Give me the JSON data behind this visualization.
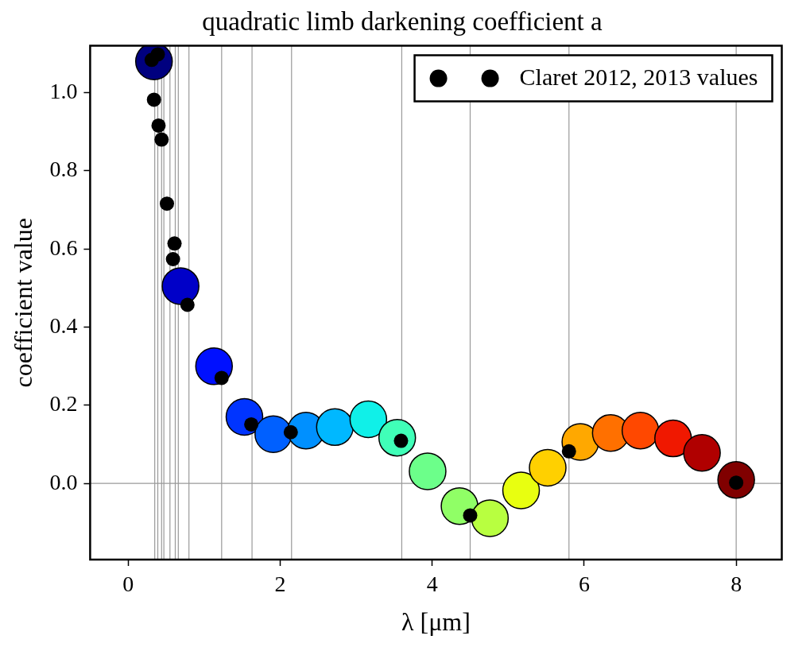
{
  "chart_data": {
    "type": "scatter",
    "title": "quadratic limb darkening coefficient a",
    "xlabel": "λ [μm]",
    "ylabel": "coefficient value",
    "xlim": [
      -0.5,
      8.6
    ],
    "ylim": [
      -0.195,
      1.12
    ],
    "xticks": [
      0,
      2,
      4,
      6,
      8
    ],
    "yticks": [
      {
        "value": 0,
        "label": "0.0"
      },
      {
        "value": 0.2,
        "label": "0.2"
      },
      {
        "value": 0.4,
        "label": "0.4"
      },
      {
        "value": 0.6,
        "label": "0.6"
      },
      {
        "value": 0.8,
        "label": "0.8"
      },
      {
        "value": 1.0,
        "label": "1.0"
      }
    ],
    "grid": false,
    "legend": "top right",
    "marker": "circle",
    "series": [
      {
        "x": [
          0.34,
          0.69,
          1.13,
          1.53,
          1.91,
          2.34,
          2.72,
          3.16,
          3.54,
          3.94,
          4.36,
          4.76,
          5.17,
          5.52,
          5.95,
          6.35,
          6.74,
          7.17,
          7.55,
          8.0
        ],
        "values": [
          1.08,
          0.505,
          0.3,
          0.17,
          0.126,
          0.135,
          0.144,
          0.164,
          0.117,
          0.031,
          -0.058,
          -0.089,
          -0.018,
          0.04,
          0.106,
          0.129,
          0.135,
          0.115,
          0.078,
          0.009
        ],
        "colors": [
          "#00007f",
          "#0000c8",
          "#0010ff",
          "#0034ff",
          "#0060ff",
          "#0090ff",
          "#00b8ff",
          "#10f0e8",
          "#40ffb8",
          "#6cff8a",
          "#90ff66",
          "#b8ff40",
          "#e8ff10",
          "#ffd000",
          "#ffa800",
          "#ff7000",
          "#ff4800",
          "#f01800",
          "#b00000",
          "#800000"
        ]
      },
      {
        "name": "Claret 2012, 2013 values",
        "color": "#000000",
        "x": [
          0.31,
          0.39,
          0.34,
          0.4,
          0.44,
          0.51,
          0.61,
          0.59,
          0.78,
          1.23,
          1.62,
          2.14,
          3.59,
          4.5,
          5.8,
          8.0
        ],
        "values": [
          1.084,
          1.098,
          0.982,
          0.916,
          0.88,
          0.716,
          0.614,
          0.574,
          0.457,
          0.27,
          0.151,
          0.131,
          0.109,
          -0.082,
          0.082,
          0.002
        ]
      }
    ],
    "ref_lines": [
      {
        "axis": "y",
        "value": 0,
        "color": "#999999"
      },
      {
        "axis": "x",
        "value": 0.35,
        "color": "#999999"
      },
      {
        "axis": "x",
        "value": 0.39,
        "color": "#999999"
      },
      {
        "axis": "x",
        "value": 0.44,
        "color": "#999999"
      },
      {
        "axis": "x",
        "value": 0.47,
        "color": "#999999"
      },
      {
        "axis": "x",
        "value": 0.55,
        "color": "#999999"
      },
      {
        "axis": "x",
        "value": 0.62,
        "color": "#999999"
      },
      {
        "axis": "x",
        "value": 0.66,
        "color": "#999999"
      },
      {
        "axis": "x",
        "value": 0.8,
        "color": "#999999"
      },
      {
        "axis": "x",
        "value": 1.23,
        "color": "#999999"
      },
      {
        "axis": "x",
        "value": 1.63,
        "color": "#999999"
      },
      {
        "axis": "x",
        "value": 2.15,
        "color": "#999999"
      },
      {
        "axis": "x",
        "value": 3.6,
        "color": "#999999"
      },
      {
        "axis": "x",
        "value": 4.5,
        "color": "#999999"
      },
      {
        "axis": "x",
        "value": 5.8,
        "color": "#999999"
      },
      {
        "axis": "x",
        "value": 8.0,
        "color": "#999999"
      }
    ]
  }
}
